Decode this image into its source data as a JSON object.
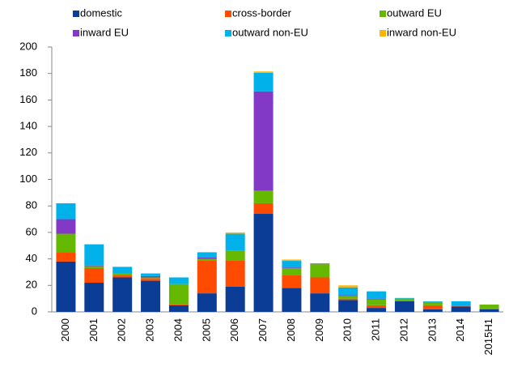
{
  "chart_data": {
    "type": "stacked-bar",
    "categories": [
      "2000",
      "2001",
      "2002",
      "2003",
      "2004",
      "2005",
      "2006",
      "2007",
      "2008",
      "2009",
      "2010",
      "2011",
      "2012",
      "2013",
      "2014",
      "2015H1"
    ],
    "series": [
      {
        "name": "domestic",
        "color": "#0b3d96",
        "values": [
          38,
          22,
          26,
          23.5,
          5,
          14,
          19,
          74,
          18,
          14,
          9,
          3,
          8,
          2,
          4,
          2
        ]
      },
      {
        "name": "cross-border",
        "color": "#ff4b00",
        "values": [
          7,
          11,
          1.5,
          1.5,
          0.5,
          25,
          20,
          8,
          10,
          12,
          1,
          2,
          0.5,
          3,
          0.5,
          0.5
        ]
      },
      {
        "name": "outward EU",
        "color": "#65b800",
        "values": [
          14,
          1.5,
          1.5,
          1,
          15.5,
          1,
          7,
          9.5,
          5,
          10,
          2,
          4.5,
          1.5,
          2.5,
          0,
          3
        ]
      },
      {
        "name": "inward EU",
        "color": "#8139c6",
        "values": [
          11,
          0.5,
          0,
          1,
          0,
          1,
          0,
          75,
          0.5,
          0.5,
          0.5,
          0.5,
          0,
          0,
          0,
          0
        ]
      },
      {
        "name": "outward non-EU",
        "color": "#00b1ea",
        "values": [
          12,
          16,
          5,
          2,
          5,
          4,
          13,
          14,
          5,
          0,
          6,
          5.5,
          0.5,
          0.5,
          3.5,
          0
        ]
      },
      {
        "name": "inward non-EU",
        "color": "#ffb400",
        "values": [
          0,
          0,
          0,
          0,
          0,
          0,
          1,
          1,
          1,
          0,
          1.5,
          0,
          0,
          0,
          0,
          0
        ]
      }
    ],
    "ylim": [
      0,
      200
    ],
    "yticks": [
      0,
      20,
      40,
      60,
      80,
      100,
      120,
      140,
      160,
      180,
      200
    ],
    "legend": "top",
    "grid": false
  }
}
